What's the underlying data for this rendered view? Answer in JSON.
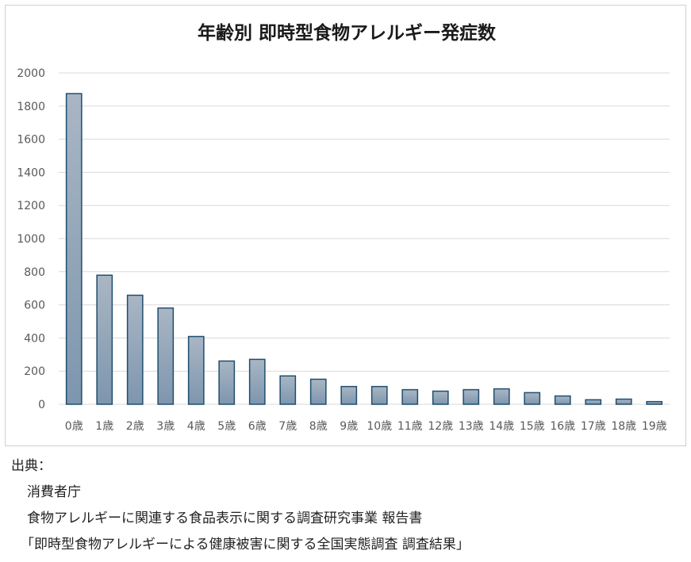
{
  "chart_data": {
    "type": "bar",
    "title": "年齢別 即時型食物アレルギー発症数",
    "xlabel": "",
    "ylabel": "",
    "ylim": [
      0,
      2000
    ],
    "yticks": [
      0,
      200,
      400,
      600,
      800,
      1000,
      1200,
      1400,
      1600,
      1800,
      2000
    ],
    "grid": true,
    "legend": "none",
    "categories": [
      "0歳",
      "1歳",
      "2歳",
      "3歳",
      "4歳",
      "5歳",
      "6歳",
      "7歳",
      "8歳",
      "9歳",
      "10歳",
      "11歳",
      "12歳",
      "13歳",
      "14歳",
      "15歳",
      "16歳",
      "17歳",
      "18歳",
      "19歳"
    ],
    "values": [
      1875,
      779,
      658,
      581,
      409,
      261,
      271,
      171,
      151,
      107,
      107,
      88,
      79,
      88,
      93,
      70,
      50,
      27,
      31,
      16
    ],
    "colors": {
      "bar_top": "#a9b6c4",
      "bar_bottom": "#7d96ae",
      "bar_stroke": "#1f4e6e",
      "grid": "#d9d9d9",
      "tick_text": "#595959",
      "title_text": "#1a1a1a"
    }
  },
  "source": {
    "label": "出典：",
    "lines": [
      "消費者庁",
      "食物アレルギーに関連する食品表示に関する調査研究事業 報告書",
      "「即時型食物アレルギーによる健康被害に関する全国実態調査 調査結果」"
    ]
  }
}
